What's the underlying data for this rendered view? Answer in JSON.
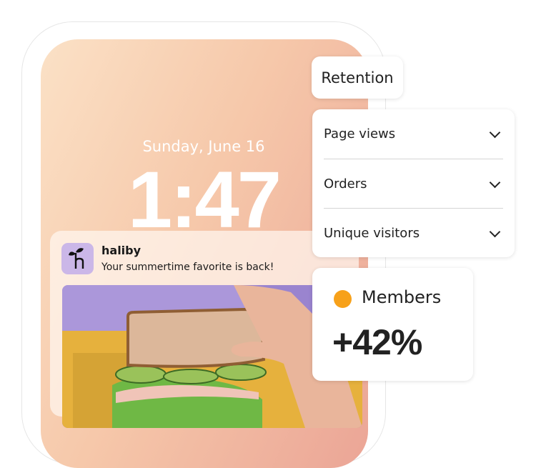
{
  "lockscreen": {
    "date": "Sunday, June 16",
    "time": "1:47"
  },
  "notification": {
    "app_name": "haliby",
    "message": "Your summertime favorite is back!",
    "icon": "sprout-h-logo-icon"
  },
  "retention": {
    "label": "Retention"
  },
  "metrics_dropdown": {
    "items": [
      {
        "label": "Page views",
        "icon": "chevron-down-icon"
      },
      {
        "label": "Orders",
        "icon": "chevron-down-icon"
      },
      {
        "label": "Unique visitors",
        "icon": "chevron-down-icon"
      }
    ]
  },
  "members_card": {
    "label": "Members",
    "value": "+42%",
    "dot_color": "#f7a11a"
  }
}
